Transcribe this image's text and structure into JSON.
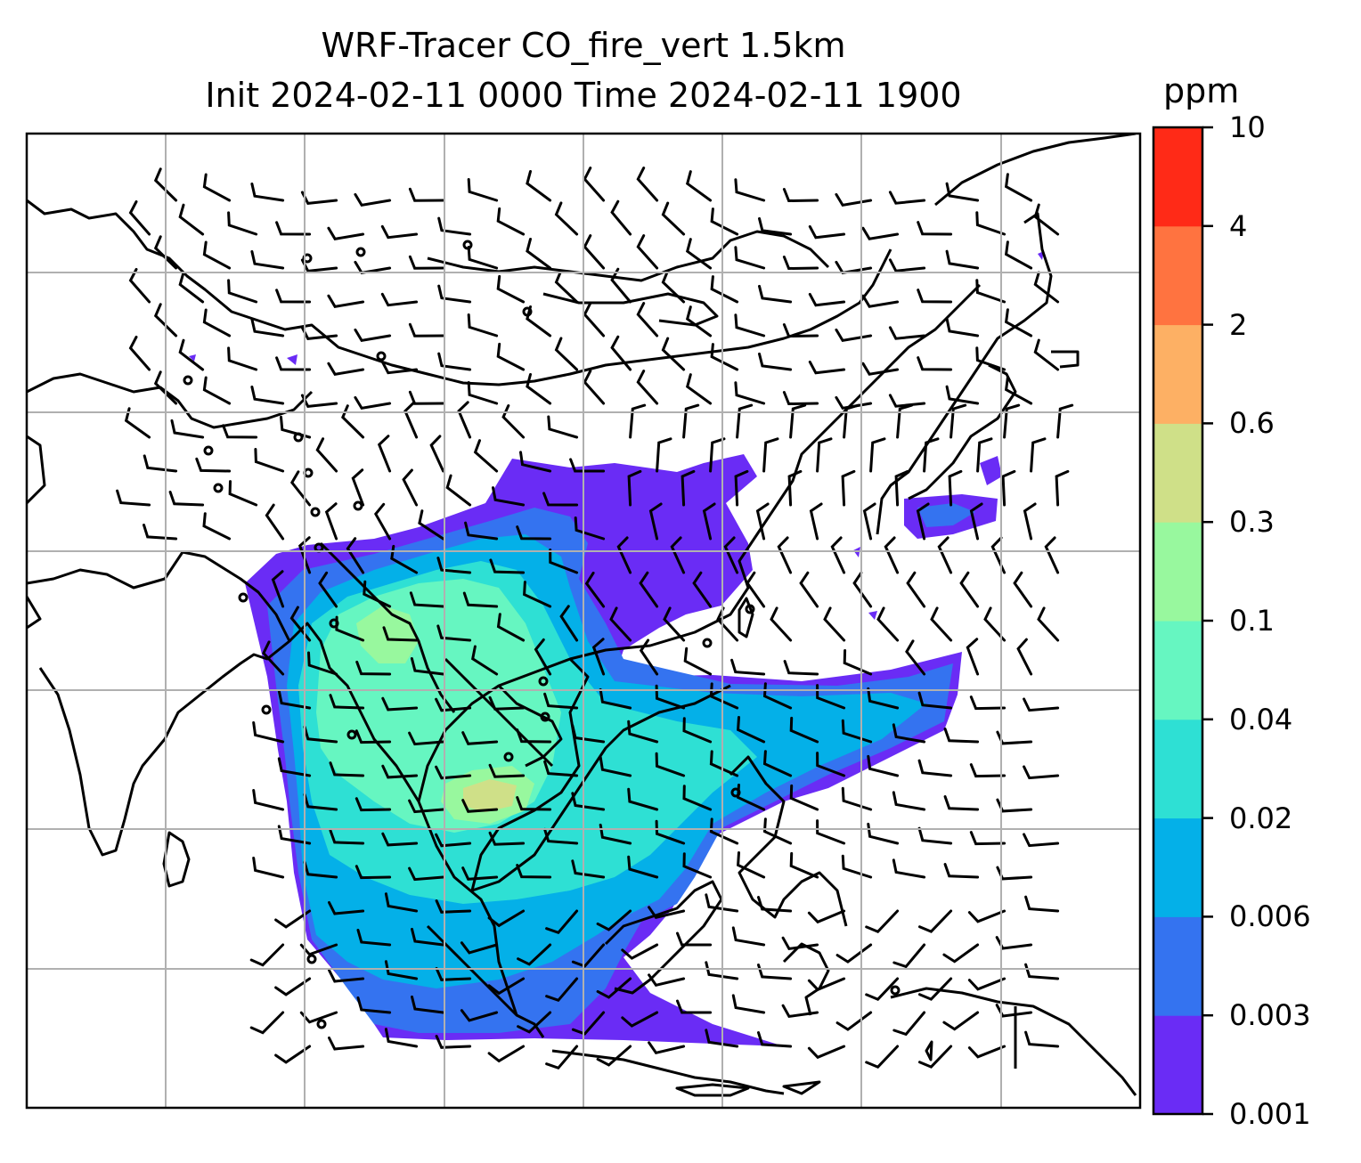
{
  "title": {
    "line1": "WRF-Tracer CO_fire_vert 1.5km",
    "line2": "Init 2024-02-11 0000 Time 2024-02-11 1900"
  },
  "colorbar": {
    "unit": "ppm",
    "ticks": [
      "0.001",
      "0.003",
      "0.006",
      "0.02",
      "0.04",
      "0.1",
      "0.3",
      "0.6",
      "2",
      "4",
      "10"
    ],
    "colors": [
      "#6a2cf5",
      "#3473f0",
      "#04b0e8",
      "#2ee0d4",
      "#66f6c1",
      "#98f89e",
      "#cfe088",
      "#fdb064",
      "#ff7340",
      "#ff2a17"
    ]
  },
  "map": {
    "gridline_color": "#b0b0b0",
    "coastline_color": "#000000",
    "wind_barb_color": "#000000"
  }
}
